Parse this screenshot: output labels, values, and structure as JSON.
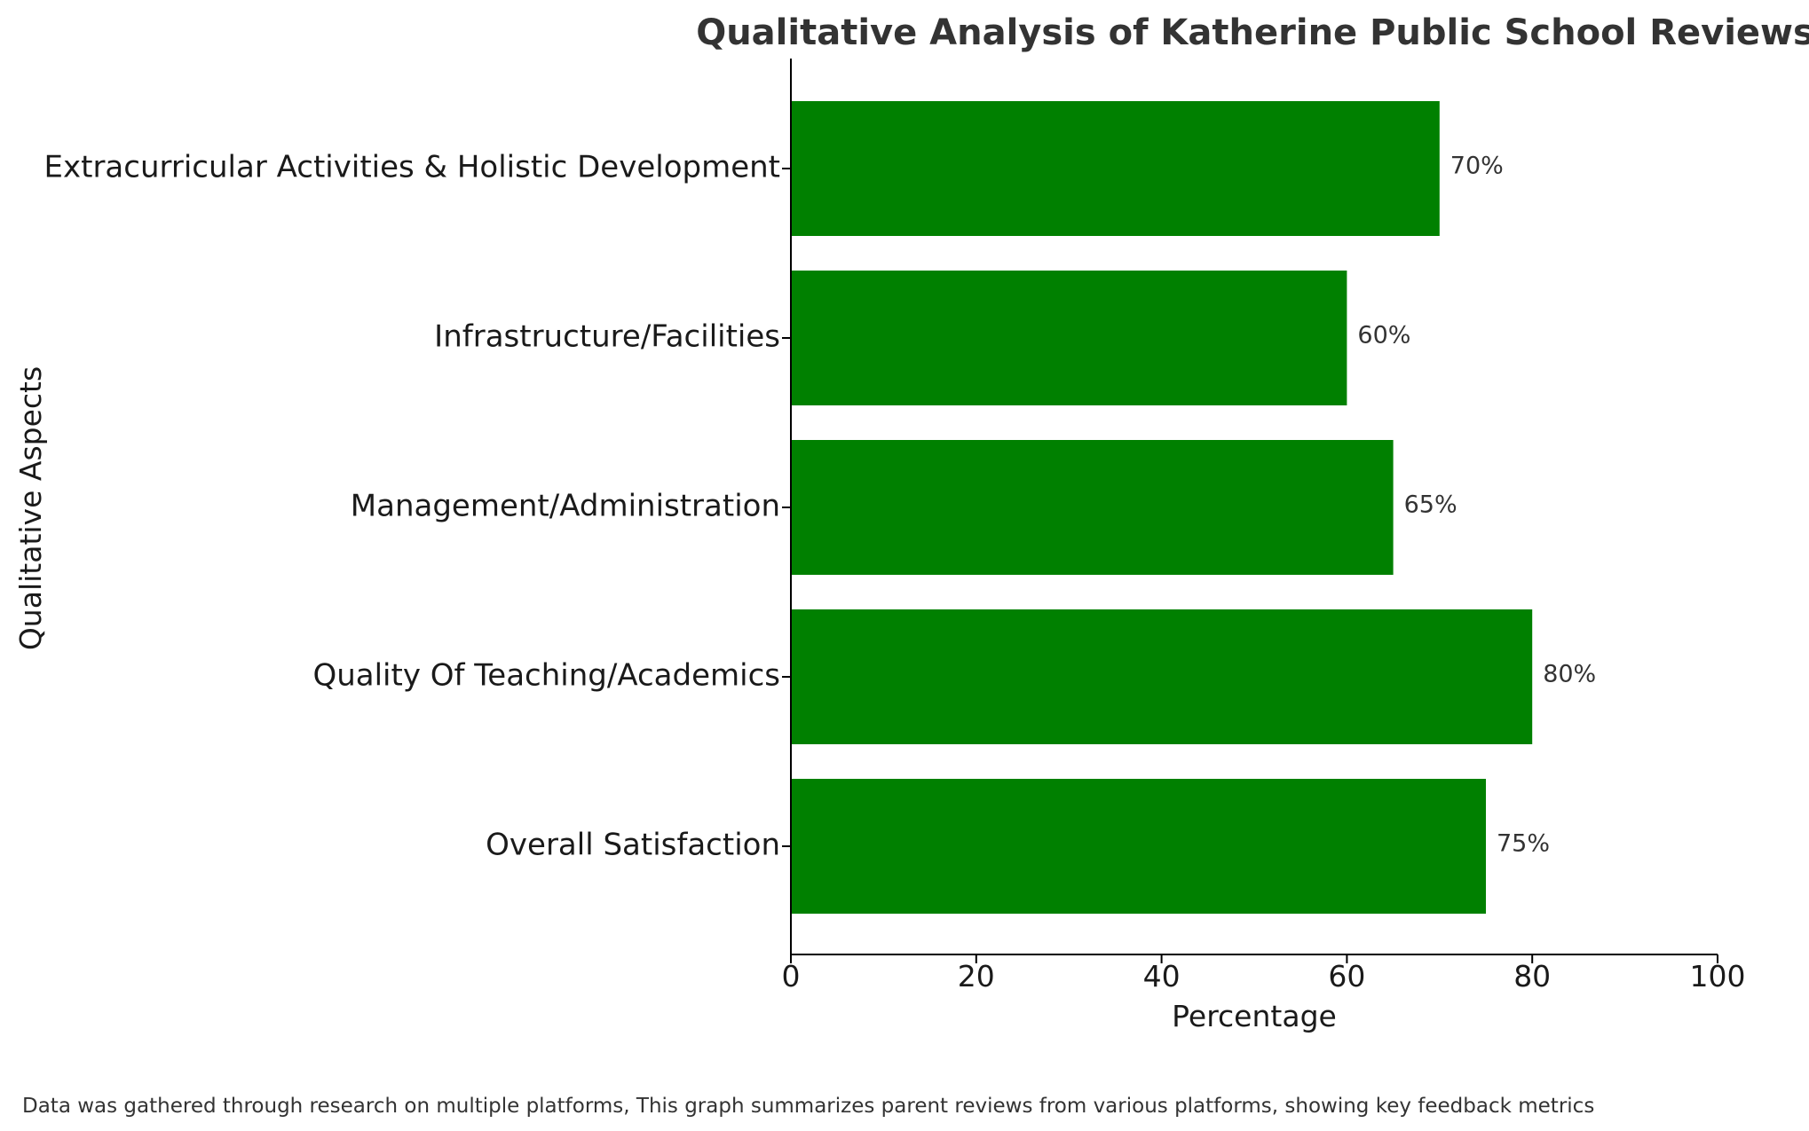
{
  "chart_data": {
    "type": "bar",
    "orientation": "horizontal",
    "title": "Qualitative Analysis of Katherine Public School Reviews",
    "xlabel": "Percentage",
    "ylabel": "Qualitative Aspects",
    "xlim": [
      0,
      100
    ],
    "xticks": [
      0,
      20,
      40,
      60,
      80,
      100
    ],
    "categories": [
      "Overall Satisfaction",
      "Quality Of Teaching/Academics",
      "Management/Administration",
      "Infrastructure/Facilities",
      "Extracurricular Activities & Holistic Development"
    ],
    "values": [
      75,
      80,
      65,
      60,
      70
    ],
    "value_labels": [
      "75%",
      "80%",
      "65%",
      "60%",
      "70%"
    ],
    "bar_color": "#008000",
    "grid": false,
    "legend": "none"
  },
  "footnote": "Data was gathered through research on multiple platforms, This graph summarizes parent reviews from various platforms, showing key feedback metrics"
}
